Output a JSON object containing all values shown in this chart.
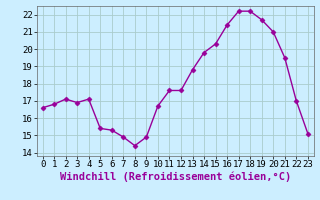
{
  "x": [
    0,
    1,
    2,
    3,
    4,
    5,
    6,
    7,
    8,
    9,
    10,
    11,
    12,
    13,
    14,
    15,
    16,
    17,
    18,
    19,
    20,
    21,
    22,
    23
  ],
  "y": [
    16.6,
    16.8,
    17.1,
    16.9,
    17.1,
    15.4,
    15.3,
    14.9,
    14.4,
    14.9,
    16.7,
    17.6,
    17.6,
    18.8,
    19.8,
    20.3,
    21.4,
    22.2,
    22.2,
    21.7,
    21.0,
    19.5,
    17.0,
    15.1
  ],
  "line_color": "#990099",
  "marker": "D",
  "marker_size": 2.5,
  "bg_color": "#cceeff",
  "grid_color": "#aacccc",
  "xlabel": "Windchill (Refroidissement éolien,°C)",
  "xlabel_color": "#990099",
  "ylim": [
    13.8,
    22.5
  ],
  "yticks": [
    14,
    15,
    16,
    17,
    18,
    19,
    20,
    21,
    22
  ],
  "xtick_labels": [
    "0",
    "1",
    "2",
    "3",
    "4",
    "5",
    "6",
    "7",
    "8",
    "9",
    "10",
    "11",
    "12",
    "13",
    "14",
    "15",
    "16",
    "17",
    "18",
    "19",
    "20",
    "21",
    "22",
    "23"
  ],
  "font_size": 6.5,
  "xlabel_fontsize": 7.5,
  "line_width": 1.0
}
